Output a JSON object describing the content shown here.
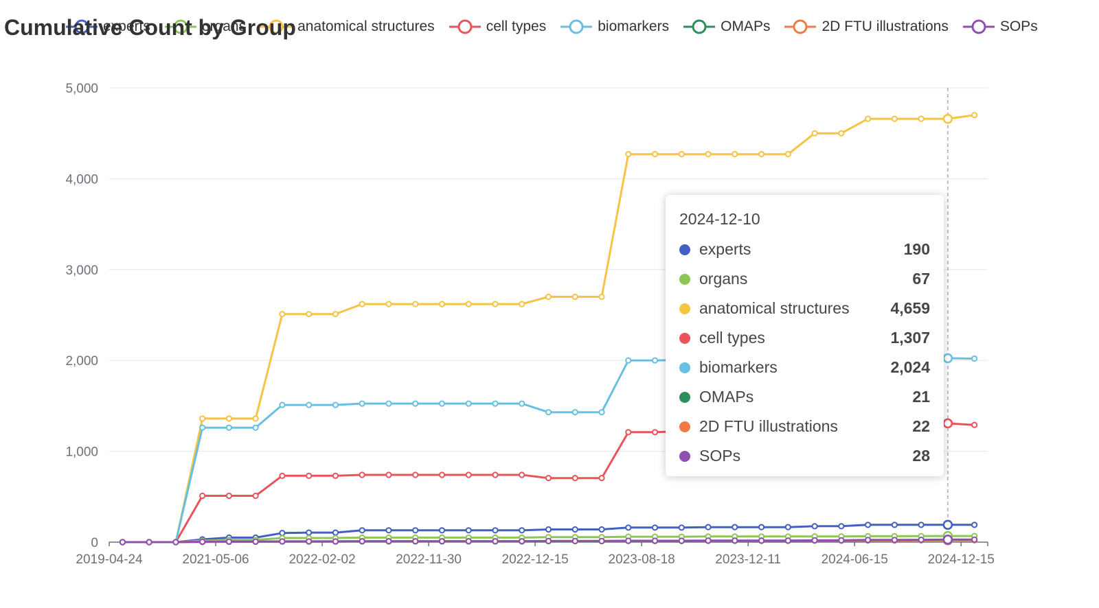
{
  "chart_data": {
    "type": "line",
    "title": "Cumulative Count by Group",
    "xlabel": "",
    "ylabel": "",
    "ylim": [
      0,
      5000
    ],
    "yticks": [
      "0",
      "1,000",
      "2,000",
      "3,000",
      "4,000",
      "5,000"
    ],
    "ytick_values": [
      0,
      1000,
      2000,
      3000,
      4000,
      5000
    ],
    "x_tick_labels": [
      "2019-04-24",
      "2021-05-06",
      "2022-02-02",
      "2022-11-30",
      "2022-12-15",
      "2023-08-18",
      "2023-12-11",
      "2024-06-15",
      "2024-12-15"
    ],
    "x_tick_every": 4,
    "legend_position": "top",
    "grid": "horizontal",
    "num_points": 33,
    "highlight_index": 31,
    "series": [
      {
        "name": "experts",
        "color": "#4260c3",
        "values": [
          0,
          0,
          0,
          30,
          50,
          50,
          100,
          105,
          105,
          130,
          130,
          130,
          130,
          130,
          130,
          130,
          140,
          140,
          140,
          160,
          160,
          160,
          165,
          165,
          165,
          165,
          175,
          175,
          190,
          190,
          190,
          190,
          190
        ]
      },
      {
        "name": "organs",
        "color": "#8dc657",
        "values": [
          0,
          0,
          0,
          15,
          25,
          25,
          45,
          45,
          45,
          50,
          50,
          50,
          50,
          50,
          50,
          50,
          55,
          55,
          55,
          60,
          60,
          60,
          62,
          62,
          62,
          62,
          63,
          63,
          65,
          65,
          66,
          67,
          67
        ]
      },
      {
        "name": "anatomical structures",
        "color": "#f6c444",
        "values": [
          0,
          0,
          0,
          1360,
          1360,
          1360,
          2510,
          2510,
          2510,
          2620,
          2620,
          2620,
          2620,
          2620,
          2620,
          2620,
          2700,
          2700,
          2700,
          4270,
          4270,
          4270,
          4270,
          4270,
          4270,
          4270,
          4500,
          4500,
          4659,
          4659,
          4659,
          4659,
          4700
        ]
      },
      {
        "name": "cell types",
        "color": "#e8545a",
        "values": [
          0,
          0,
          0,
          510,
          510,
          510,
          730,
          730,
          730,
          740,
          740,
          740,
          740,
          740,
          740,
          740,
          705,
          705,
          705,
          1210,
          1210,
          1220,
          1220,
          1220,
          1230,
          1230,
          1240,
          1250,
          1270,
          1290,
          1300,
          1307,
          1290
        ]
      },
      {
        "name": "biomarkers",
        "color": "#67c0e3",
        "values": [
          0,
          0,
          0,
          1260,
          1260,
          1260,
          1510,
          1510,
          1510,
          1525,
          1525,
          1525,
          1525,
          1525,
          1525,
          1525,
          1430,
          1430,
          1430,
          2000,
          2000,
          2005,
          2005,
          2005,
          2010,
          2010,
          2015,
          2015,
          2020,
          2020,
          2024,
          2024,
          2020
        ]
      },
      {
        "name": "OMAPs",
        "color": "#2d8e5b",
        "values": [
          0,
          0,
          0,
          2,
          4,
          4,
          6,
          6,
          6,
          8,
          8,
          8,
          8,
          8,
          8,
          8,
          10,
          10,
          10,
          12,
          12,
          12,
          14,
          14,
          14,
          14,
          16,
          16,
          18,
          18,
          20,
          21,
          21
        ]
      },
      {
        "name": "2D FTU illustrations",
        "color": "#f17a45",
        "values": [
          0,
          0,
          0,
          3,
          5,
          5,
          8,
          8,
          8,
          10,
          10,
          10,
          10,
          10,
          10,
          10,
          12,
          12,
          12,
          14,
          14,
          14,
          16,
          16,
          16,
          16,
          18,
          18,
          20,
          20,
          21,
          22,
          22
        ]
      },
      {
        "name": "SOPs",
        "color": "#8e4fb1",
        "values": [
          0,
          0,
          0,
          4,
          6,
          6,
          8,
          8,
          8,
          10,
          10,
          10,
          10,
          10,
          10,
          10,
          12,
          12,
          12,
          15,
          15,
          15,
          17,
          17,
          17,
          17,
          20,
          20,
          24,
          24,
          26,
          28,
          28
        ]
      }
    ]
  },
  "tooltip": {
    "date": "2024-12-10",
    "rows": [
      {
        "name": "experts",
        "value": "190",
        "color": "#4260c3"
      },
      {
        "name": "organs",
        "value": "67",
        "color": "#8dc657"
      },
      {
        "name": "anatomical structures",
        "value": "4,659",
        "color": "#f6c444"
      },
      {
        "name": "cell types",
        "value": "1,307",
        "color": "#e8545a"
      },
      {
        "name": "biomarkers",
        "value": "2,024",
        "color": "#67c0e3"
      },
      {
        "name": "OMAPs",
        "value": "21",
        "color": "#2d8e5b"
      },
      {
        "name": "2D FTU illustrations",
        "value": "22",
        "color": "#f17a45"
      },
      {
        "name": "SOPs",
        "value": "28",
        "color": "#8e4fb1"
      }
    ]
  }
}
